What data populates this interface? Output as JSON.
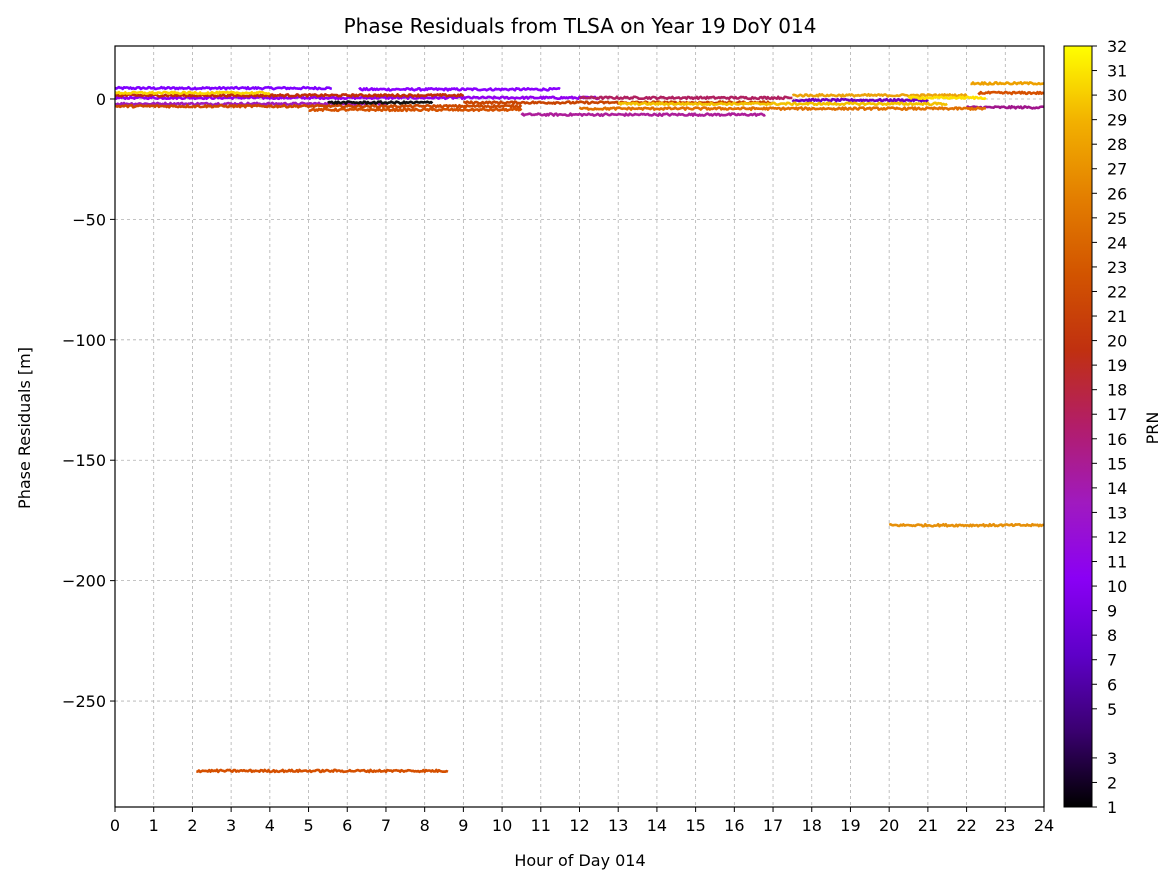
{
  "chart_data": {
    "type": "scatter",
    "title": "Phase Residuals from TLSA on Year 19 DoY 014",
    "xlabel": "Hour of Day 014",
    "ylabel": "Phase Residuals [m]",
    "xlim": [
      0,
      24
    ],
    "ylim": [
      -294,
      22
    ],
    "x_ticks": [
      0,
      1,
      2,
      3,
      4,
      5,
      6,
      7,
      8,
      9,
      10,
      11,
      12,
      13,
      14,
      15,
      16,
      17,
      18,
      19,
      20,
      21,
      22,
      23,
      24
    ],
    "x_tick_labels": [
      "0",
      "1",
      "2",
      "3",
      "4",
      "5",
      "6",
      "7",
      "8",
      "9",
      "10",
      "11",
      "12",
      "13",
      "14",
      "15",
      "16",
      "17",
      "18",
      "19",
      "20",
      "21",
      "22",
      "23",
      "24"
    ],
    "y_ticks": [
      0,
      -50,
      -100,
      -150,
      -200,
      -250
    ],
    "y_tick_labels": [
      "0",
      "−50",
      "−100",
      "−150",
      "−200",
      "−250"
    ],
    "grid": true,
    "colorbar": {
      "label": "PRN",
      "colormap": "gnuplot",
      "range": [
        1,
        32
      ],
      "ticks": [
        1,
        2,
        3,
        5,
        6,
        7,
        8,
        9,
        10,
        11,
        12,
        13,
        14,
        15,
        16,
        17,
        18,
        19,
        20,
        21,
        22,
        23,
        24,
        25,
        26,
        27,
        28,
        29,
        30,
        31,
        32
      ],
      "tick_labels": [
        "1",
        "2",
        "3",
        "5",
        "6",
        "7",
        "8",
        "9",
        "10",
        "11",
        "12",
        "13",
        "14",
        "15",
        "16",
        "17",
        "18",
        "19",
        "20",
        "21",
        "22",
        "23",
        "24",
        "25",
        "26",
        "27",
        "28",
        "29",
        "30",
        "31",
        "32"
      ]
    },
    "series": [
      {
        "prn": 7,
        "x_start": 0.0,
        "x_end": 5.6,
        "y": 4.5,
        "color": "#7f00ff"
      },
      {
        "prn": 9,
        "x_start": 6.3,
        "x_end": 11.5,
        "y": 4.0,
        "color": "#8a00ff"
      },
      {
        "prn": 10,
        "x_start": 0.0,
        "x_end": 12.5,
        "y": 0.5,
        "color": "#9200f0"
      },
      {
        "prn": 12,
        "x_start": 0.0,
        "x_end": 7.0,
        "y": -2.0,
        "color": "#a01ab8"
      },
      {
        "prn": 14,
        "x_start": 10.5,
        "x_end": 16.8,
        "y": -6.5,
        "color": "#ad1e9a"
      },
      {
        "prn": 16,
        "x_start": 12.0,
        "x_end": 17.5,
        "y": 0.5,
        "color": "#b02060"
      },
      {
        "prn": 4,
        "x_start": 17.5,
        "x_end": 21.0,
        "y": -0.5,
        "color": "#6a00c0"
      },
      {
        "prn": 13,
        "x_start": 22.0,
        "x_end": 24.0,
        "y": -3.5,
        "color": "#a0158c"
      },
      {
        "prn": 18,
        "x_start": 0.0,
        "x_end": 9.0,
        "y": 1.5,
        "color": "#c02f08"
      },
      {
        "prn": 19,
        "x_start": 9.0,
        "x_end": 17.0,
        "y": -1.5,
        "color": "#c84400"
      },
      {
        "prn": 20,
        "x_start": 0.0,
        "x_end": 10.5,
        "y": -3.0,
        "color": "#cc4a00"
      },
      {
        "prn": 21,
        "x_start": 5.0,
        "x_end": 10.5,
        "y": -4.5,
        "color": "#d55200"
      },
      {
        "prn": 22,
        "x_start": 22.3,
        "x_end": 24.0,
        "y": 2.5,
        "color": "#d65000"
      },
      {
        "prn": 24,
        "x_start": 12.0,
        "x_end": 22.5,
        "y": -4.0,
        "color": "#e07000"
      },
      {
        "prn": 26,
        "x_start": 20.0,
        "x_end": 24.0,
        "y": -177.0,
        "color": "#e6900a"
      },
      {
        "prn": 27,
        "x_start": 17.5,
        "x_end": 22.0,
        "y": 1.5,
        "color": "#eba20a"
      },
      {
        "prn": 28,
        "x_start": 22.1,
        "x_end": 24.0,
        "y": 6.5,
        "color": "#eda000"
      },
      {
        "prn": 30,
        "x_start": 13.0,
        "x_end": 21.5,
        "y": -2.0,
        "color": "#f3c100"
      },
      {
        "prn": 31,
        "x_start": 0.0,
        "x_end": 4.0,
        "y": 2.5,
        "color": "#f7d400"
      },
      {
        "prn": 32,
        "x_start": 20.5,
        "x_end": 22.5,
        "y": 0.5,
        "color": "#ffe000"
      },
      {
        "prn": 1,
        "x_start": 5.5,
        "x_end": 8.2,
        "y": -1.5,
        "color": "#101010"
      },
      {
        "prn": 23,
        "x_start": 2.1,
        "x_end": 8.6,
        "y": -279.0,
        "color": "#d55000"
      }
    ]
  }
}
